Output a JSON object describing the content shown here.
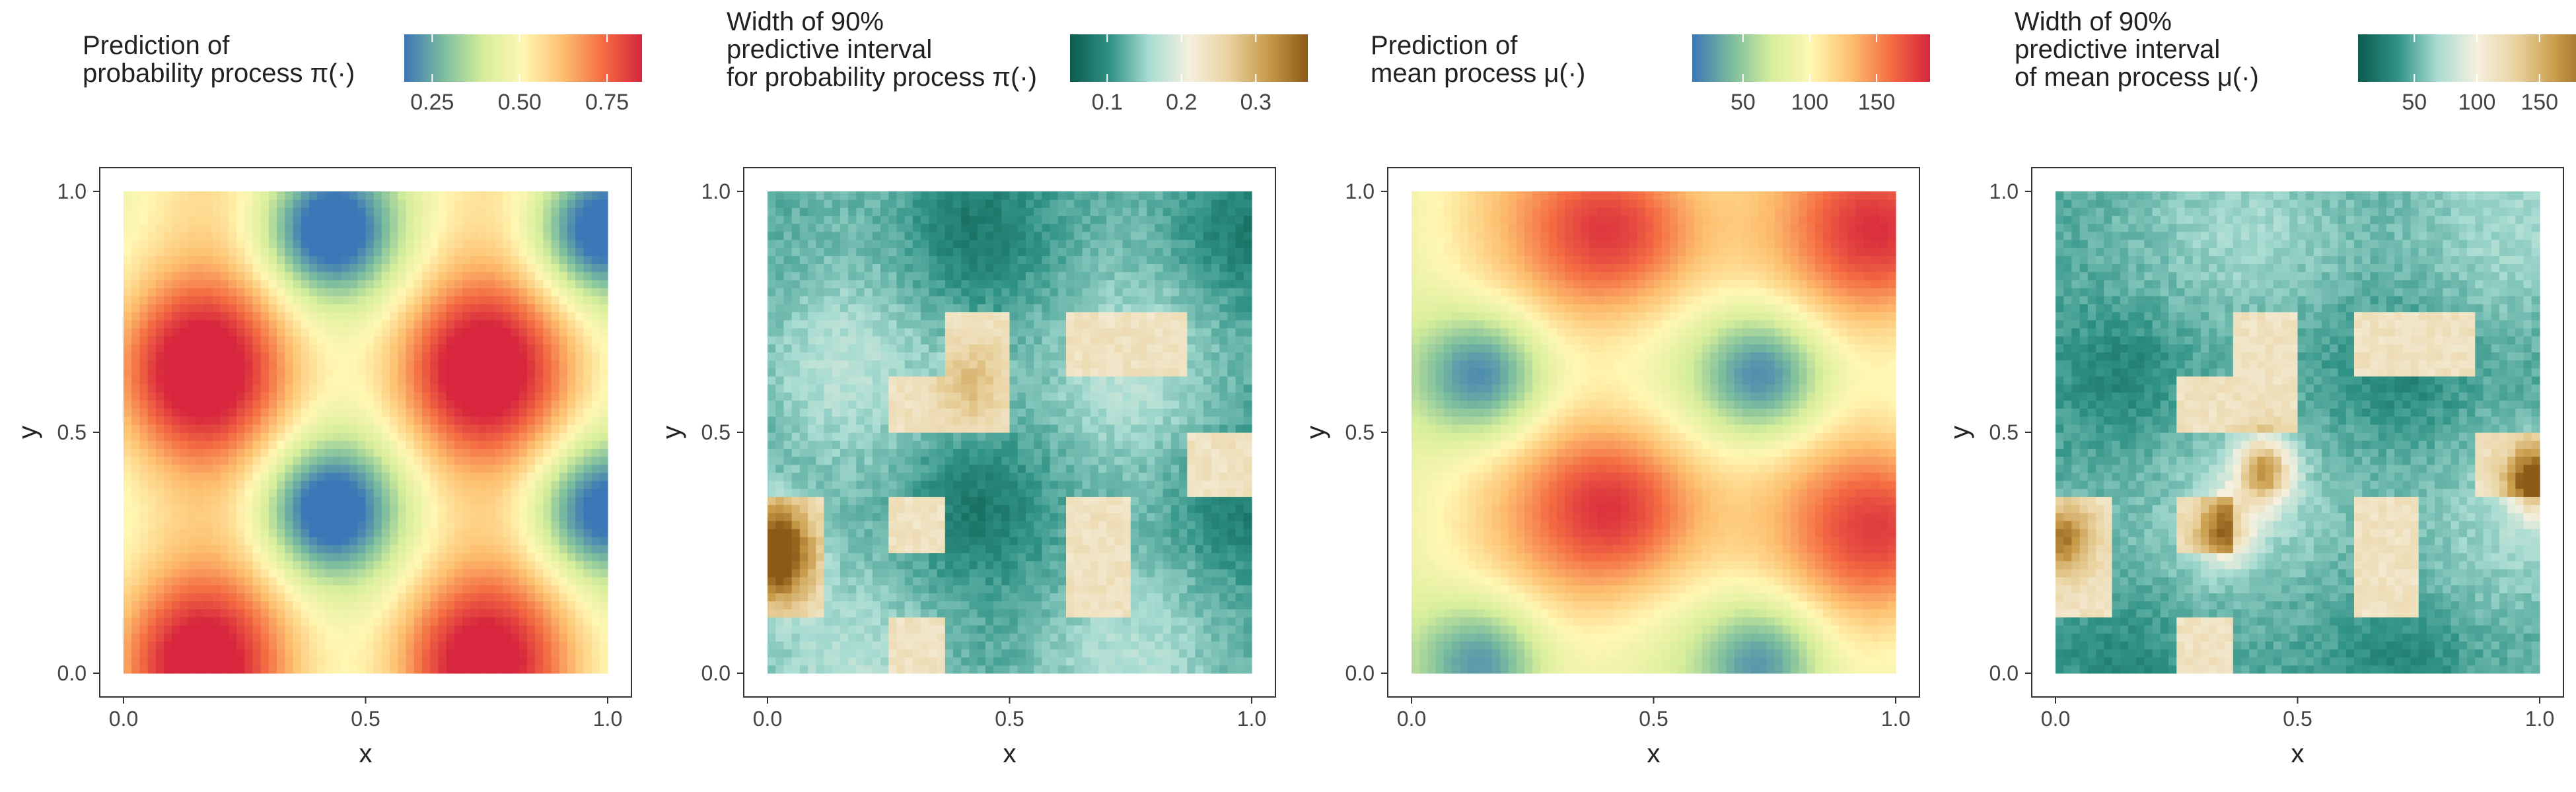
{
  "chart_data": [
    {
      "type": "heatmap",
      "legend_title": [
        "Prediction of",
        "probability process π(·)"
      ],
      "legend_placement": "top",
      "colorbar_ticks": [
        0.25,
        0.5,
        0.75
      ],
      "colorbar_tick_labels": [
        "0.25",
        "0.50",
        "0.75"
      ],
      "color_range": [
        0.17,
        0.85
      ],
      "palette": [
        "#3b77b6",
        "#fff7b3",
        "#d7263d"
      ],
      "palette_stops": [
        "#3b77b6",
        "#7bbd9e",
        "#d6ee9b",
        "#fff7b3",
        "#fdbf6f",
        "#f46d43",
        "#d7263d"
      ],
      "xlabel": "x",
      "ylabel": "y",
      "xlim": [
        0,
        1
      ],
      "ylim": [
        0,
        1
      ],
      "x_ticks": [
        0.0,
        0.5,
        1.0
      ],
      "x_tick_labels": [
        "0.0",
        "0.5",
        "1.0"
      ],
      "y_ticks": [
        0.0,
        0.5,
        1.0
      ],
      "y_tick_labels": [
        "0.0",
        "0.5",
        "1.0"
      ],
      "grid": true,
      "hotspots": [
        [
          0.15,
          0.63,
          0.84
        ],
        [
          0.73,
          0.63,
          0.84
        ],
        [
          0.15,
          0.02,
          0.82
        ],
        [
          0.73,
          0.02,
          0.82
        ]
      ],
      "coldspots": [
        [
          0.42,
          0.92,
          0.18
        ],
        [
          0.98,
          0.92,
          0.18
        ],
        [
          0.42,
          0.34,
          0.18
        ],
        [
          0.98,
          0.34,
          0.2
        ]
      ]
    },
    {
      "type": "heatmap",
      "legend_title": [
        "Width of 90%",
        "predictive interval",
        "for probability process π(·)"
      ],
      "legend_placement": "top",
      "colorbar_ticks": [
        0.1,
        0.2,
        0.3
      ],
      "colorbar_tick_labels": [
        "0.1",
        "0.2",
        "0.3"
      ],
      "color_range": [
        0.05,
        0.37
      ],
      "palette": [
        "#0b5c4e",
        "#f5f0df",
        "#b07f2c"
      ],
      "palette_stops": [
        "#0b5c4e",
        "#2f9285",
        "#a9dcd2",
        "#f5f0df",
        "#e9d29f",
        "#c89b49",
        "#8b5a17"
      ],
      "xlabel": "x",
      "ylabel": "y",
      "xlim": [
        0,
        1
      ],
      "ylim": [
        0,
        1
      ],
      "x_ticks": [
        0.0,
        0.5,
        1.0
      ],
      "x_tick_labels": [
        "0.0",
        "0.5",
        "1.0"
      ],
      "y_ticks": [
        0.0,
        0.5,
        1.0
      ],
      "y_tick_labels": [
        "0.0",
        "0.5",
        "1.0"
      ],
      "grid": true,
      "missing_blocks": [
        [
          0.0,
          0.125,
          0.125,
          0.375
        ],
        [
          0.25,
          0.375,
          0.25,
          0.375
        ],
        [
          0.25,
          0.375,
          0.0,
          0.125
        ],
        [
          0.625,
          0.75,
          0.125,
          0.375
        ],
        [
          0.25,
          0.375,
          0.5,
          0.625
        ],
        [
          0.375,
          0.5,
          0.5,
          0.75
        ],
        [
          0.625,
          0.875,
          0.625,
          0.75
        ],
        [
          0.875,
          1.0,
          0.375,
          0.5
        ]
      ]
    },
    {
      "type": "heatmap",
      "legend_title": [
        "Prediction of",
        "mean process μ(·)"
      ],
      "legend_placement": "top",
      "colorbar_ticks": [
        50,
        100,
        150
      ],
      "colorbar_tick_labels": [
        "50",
        "100",
        "150"
      ],
      "color_range": [
        12,
        190
      ],
      "palette": [
        "#3b77b6",
        "#fff7b3",
        "#d7263d"
      ],
      "palette_stops": [
        "#3b77b6",
        "#7bbd9e",
        "#d6ee9b",
        "#fff7b3",
        "#fdbf6f",
        "#f46d43",
        "#d7263d"
      ],
      "xlabel": "x",
      "ylabel": "y",
      "xlim": [
        0,
        1
      ],
      "ylim": [
        0,
        1
      ],
      "x_ticks": [
        0.0,
        0.5,
        1.0
      ],
      "x_tick_labels": [
        "0.0",
        "0.5",
        "1.0"
      ],
      "y_ticks": [
        0.0,
        0.5,
        1.0
      ],
      "y_tick_labels": [
        "0.0",
        "0.5",
        "1.0"
      ],
      "grid": true,
      "hotspots": [
        [
          0.43,
          0.92,
          180
        ],
        [
          0.99,
          0.92,
          180
        ],
        [
          0.43,
          0.34,
          182
        ],
        [
          0.99,
          0.3,
          175
        ]
      ],
      "coldspots": [
        [
          0.15,
          0.62,
          20
        ],
        [
          0.73,
          0.62,
          20
        ],
        [
          0.15,
          0.02,
          25
        ],
        [
          0.73,
          0.02,
          25
        ]
      ]
    },
    {
      "type": "heatmap",
      "legend_title": [
        "Width of 90%",
        "predictive interval",
        "of mean process μ(·)"
      ],
      "legend_placement": "top",
      "colorbar_ticks": [
        50,
        100,
        150
      ],
      "colorbar_tick_labels": [
        "50",
        "100",
        "150"
      ],
      "color_range": [
        5,
        195
      ],
      "palette": [
        "#0b5c4e",
        "#f5f0df",
        "#b07f2c"
      ],
      "palette_stops": [
        "#0b5c4e",
        "#2f9285",
        "#a9dcd2",
        "#f5f0df",
        "#e9d29f",
        "#c89b49",
        "#8b5a17"
      ],
      "xlabel": "x",
      "ylabel": "y",
      "xlim": [
        0,
        1
      ],
      "ylim": [
        0,
        1
      ],
      "x_ticks": [
        0.0,
        0.5,
        1.0
      ],
      "x_tick_labels": [
        "0.0",
        "0.5",
        "1.0"
      ],
      "y_ticks": [
        0.0,
        0.5,
        1.0
      ],
      "y_tick_labels": [
        "0.0",
        "0.5",
        "1.0"
      ],
      "grid": true,
      "missing_blocks": [
        [
          0.0,
          0.125,
          0.125,
          0.375
        ],
        [
          0.25,
          0.375,
          0.25,
          0.375
        ],
        [
          0.25,
          0.375,
          0.0,
          0.125
        ],
        [
          0.625,
          0.75,
          0.125,
          0.375
        ],
        [
          0.25,
          0.375,
          0.5,
          0.625
        ],
        [
          0.375,
          0.5,
          0.5,
          0.75
        ],
        [
          0.625,
          0.875,
          0.625,
          0.75
        ],
        [
          0.875,
          1.0,
          0.375,
          0.5
        ]
      ],
      "peaks": [
        [
          0.43,
          0.42,
          195
        ],
        [
          0.99,
          0.4,
          185
        ],
        [
          0.35,
          0.3,
          140
        ],
        [
          0.02,
          0.28,
          120
        ]
      ]
    }
  ]
}
